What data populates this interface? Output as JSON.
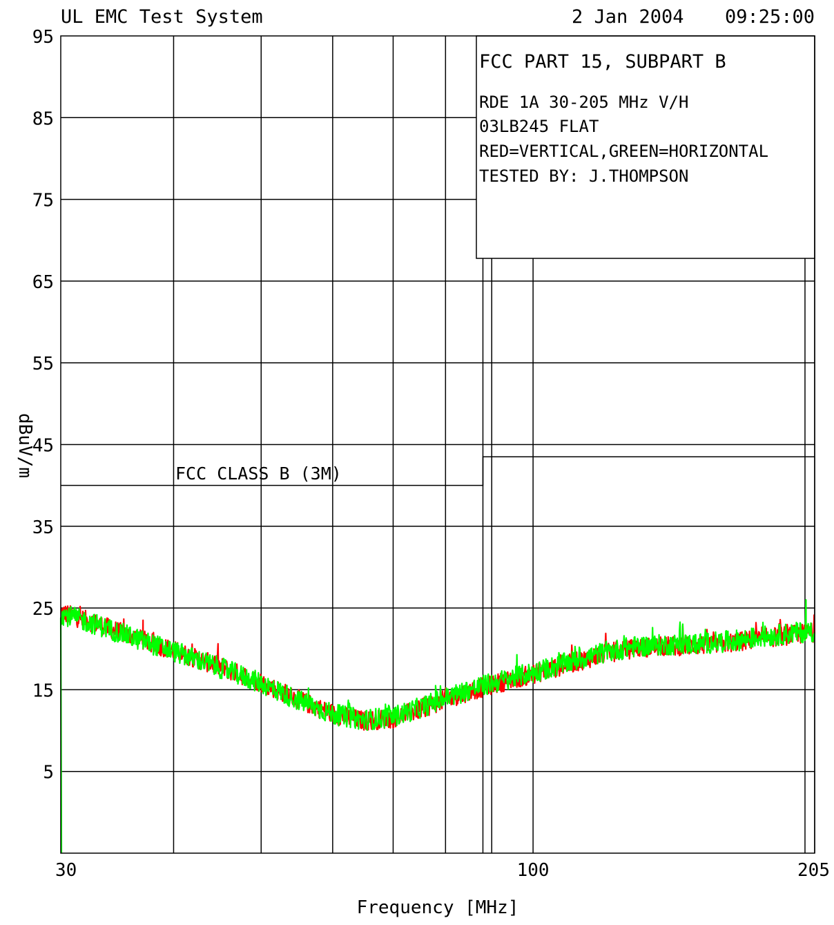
{
  "header": {
    "system": "UL EMC Test System",
    "date": "2 Jan 2004",
    "time": "09:25:00"
  },
  "chart_data": {
    "type": "line",
    "xlabel": "Frequency [MHz]",
    "ylabel": "dBuV/m",
    "x_scale": "log",
    "xlim": [
      30,
      205
    ],
    "ylim": [
      -5,
      95
    ],
    "x_ticks": [
      {
        "value": 30,
        "label": "30"
      },
      {
        "value": 100,
        "label": "100"
      },
      {
        "value": 205,
        "label": "205"
      }
    ],
    "x_gridlines": [
      40,
      50,
      60,
      70,
      80,
      88,
      90,
      100,
      200,
      205
    ],
    "y_ticks": [
      95,
      85,
      75,
      65,
      55,
      45,
      35,
      25,
      15,
      5
    ],
    "y_grid_step": 10,
    "grid": true,
    "info_box": {
      "lines": [
        "FCC PART 15, SUBPART B",
        "RDE 1A 30-205 MHz V/H",
        "03LB245 FLAT",
        "RED=VERTICAL,GREEN=HORIZONTAL",
        "TESTED BY: J.THOMPSON"
      ],
      "placement": "top-right"
    },
    "limit_line": {
      "label": "FCC CLASS B (3M)",
      "points": [
        [
          30,
          40.0
        ],
        [
          88,
          40.0
        ],
        [
          88,
          43.5
        ],
        [
          205,
          43.5
        ]
      ],
      "color": "#000000"
    },
    "series": [
      {
        "color": "#ff0000",
        "profile": [
          [
            30,
            24.5
          ],
          [
            33,
            23.0
          ],
          [
            36,
            21.5
          ],
          [
            40,
            19.8
          ],
          [
            45,
            17.8
          ],
          [
            50,
            15.9
          ],
          [
            55,
            13.8
          ],
          [
            60,
            12.0
          ],
          [
            65,
            11.2
          ],
          [
            70,
            11.5
          ],
          [
            75,
            12.6
          ],
          [
            80,
            13.8
          ],
          [
            85,
            14.8
          ],
          [
            90,
            15.6
          ],
          [
            95,
            16.3
          ],
          [
            100,
            16.9
          ],
          [
            110,
            18.2
          ],
          [
            120,
            19.4
          ],
          [
            130,
            20.1
          ],
          [
            140,
            20.3
          ],
          [
            150,
            20.4
          ],
          [
            160,
            20.6
          ],
          [
            170,
            20.9
          ],
          [
            180,
            21.3
          ],
          [
            190,
            21.6
          ],
          [
            205,
            22.0
          ]
        ],
        "noise": 1.2,
        "spikes": [
          [
            37,
            23.5
          ],
          [
            38,
            22.0
          ],
          [
            80,
            15.2
          ],
          [
            96,
            17.8
          ]
        ]
      },
      {
        "color": "#00ff00",
        "profile": [
          [
            30,
            24.3
          ],
          [
            33,
            22.9
          ],
          [
            36,
            21.4
          ],
          [
            40,
            19.7
          ],
          [
            45,
            17.7
          ],
          [
            50,
            15.8
          ],
          [
            55,
            13.7
          ],
          [
            60,
            12.0
          ],
          [
            65,
            11.3
          ],
          [
            70,
            11.7
          ],
          [
            75,
            12.8
          ],
          [
            80,
            14.0
          ],
          [
            85,
            15.0
          ],
          [
            90,
            15.8
          ],
          [
            95,
            16.5
          ],
          [
            100,
            17.1
          ],
          [
            110,
            18.4
          ],
          [
            120,
            19.6
          ],
          [
            130,
            20.3
          ],
          [
            140,
            20.5
          ],
          [
            150,
            20.6
          ],
          [
            160,
            20.8
          ],
          [
            170,
            21.1
          ],
          [
            180,
            21.5
          ],
          [
            190,
            21.8
          ],
          [
            205,
            22.2
          ]
        ],
        "noise": 1.3,
        "spikes": [
          [
            30.05,
            25.0
          ],
          [
            78,
            15.5
          ],
          [
            200.5,
            26.0
          ]
        ]
      }
    ]
  }
}
